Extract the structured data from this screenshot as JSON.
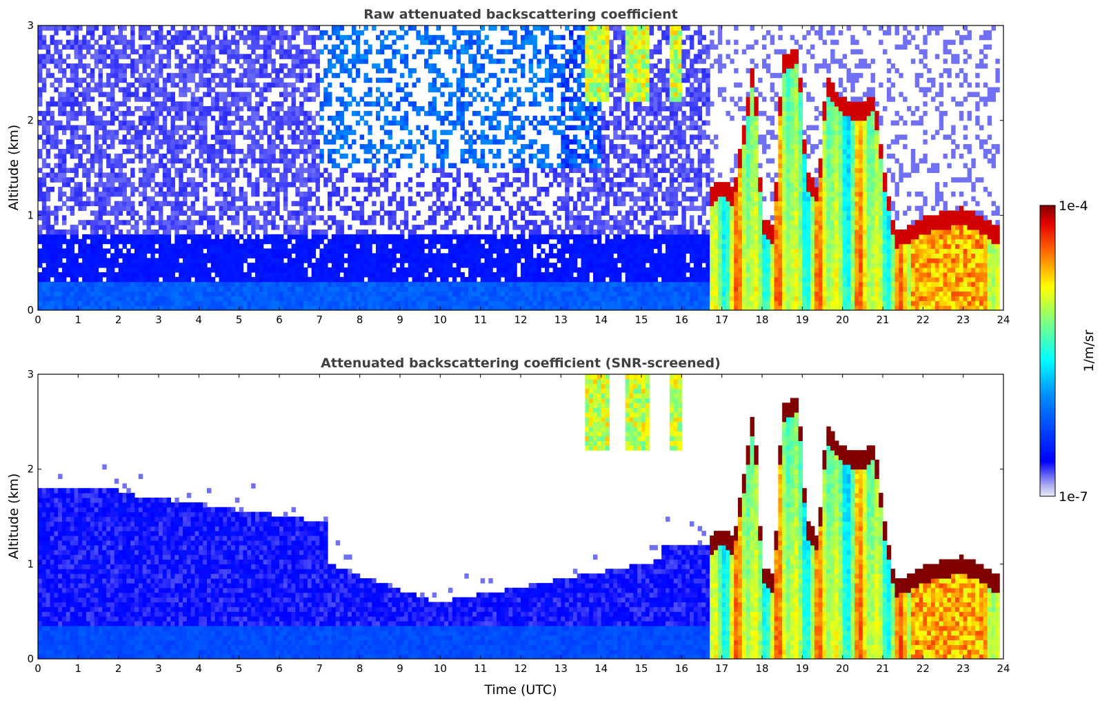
{
  "chart_data": [
    {
      "type": "heatmap",
      "title": "Raw attenuated backscattering coefficient",
      "xlabel": "",
      "ylabel": "Altitude (km)",
      "xlim": [
        0,
        24
      ],
      "ylim": [
        0,
        3
      ],
      "xticks": [
        "0",
        "1",
        "2",
        "3",
        "4",
        "5",
        "6",
        "7",
        "8",
        "9",
        "10",
        "11",
        "12",
        "13",
        "14",
        "15",
        "16",
        "17",
        "18",
        "19",
        "20",
        "21",
        "22",
        "23",
        "24"
      ],
      "yticks": [
        "0",
        "1",
        "2",
        "3"
      ],
      "grid": false,
      "colormap": "jet",
      "features": [
        {
          "label": "noise-dominated signal above boundary layer",
          "x_range": [
            0,
            16.7
          ],
          "y_range": [
            0.8,
            3
          ],
          "level_log10": -6.8
        },
        {
          "label": "boundary layer aerosol",
          "x_range": [
            0,
            16.7
          ],
          "y_range": [
            0,
            0.8
          ],
          "level_log10": -6.4
        },
        {
          "label": "cirrus",
          "x_range": [
            13.3,
            16.0
          ],
          "y_range": [
            2.2,
            3
          ],
          "level_log10": -5.0
        },
        {
          "label": "low cloud top",
          "x_range": [
            17.0,
            23.8
          ],
          "y_range": [
            0.7,
            2.8
          ],
          "level_log10": -4.1
        },
        {
          "label": "precipitation / rain streaks",
          "x_range": [
            16.7,
            23.8
          ],
          "y_range": [
            0,
            1.0
          ],
          "level_log10": -5.2
        }
      ]
    },
    {
      "type": "heatmap",
      "title": "Attenuated backscattering coefficient (SNR-screened)",
      "xlabel": "Time (UTC)",
      "ylabel": "Altitude (km)",
      "xlim": [
        0,
        24
      ],
      "ylim": [
        0,
        3
      ],
      "xticks": [
        "0",
        "1",
        "2",
        "3",
        "4",
        "5",
        "6",
        "7",
        "8",
        "9",
        "10",
        "11",
        "12",
        "13",
        "14",
        "15",
        "16",
        "17",
        "18",
        "19",
        "20",
        "21",
        "22",
        "23",
        "24"
      ],
      "yticks": [
        "0",
        "1",
        "2",
        "3"
      ],
      "grid": false,
      "colormap": "jet",
      "features": [
        {
          "label": "screened boundary layer",
          "x_range": [
            0,
            16.7
          ],
          "y_range": [
            0,
            1.8
          ],
          "level_log10": -6.4
        },
        {
          "label": "cirrus",
          "x_range": [
            13.3,
            16.0
          ],
          "y_range": [
            2.2,
            3
          ],
          "level_log10": -5.0
        },
        {
          "label": "low cloud top (saturated)",
          "x_range": [
            17.0,
            23.8
          ],
          "y_range": [
            0.7,
            2.8
          ],
          "level_log10": -3.9
        },
        {
          "label": "precipitation / rain streaks",
          "x_range": [
            16.7,
            23.8
          ],
          "y_range": [
            0,
            1.0
          ],
          "level_log10": -5.2
        }
      ]
    }
  ],
  "colorbar": {
    "label": "1/m/sr",
    "max_label": "1e-4",
    "min_label": "1e-7",
    "range_log10": [
      -7,
      -4
    ],
    "colors": [
      "#e8e8f8",
      "#0000ff",
      "#00a0ff",
      "#00ffff",
      "#7fff7f",
      "#ffff00",
      "#ff8000",
      "#ff0000",
      "#800000"
    ]
  }
}
